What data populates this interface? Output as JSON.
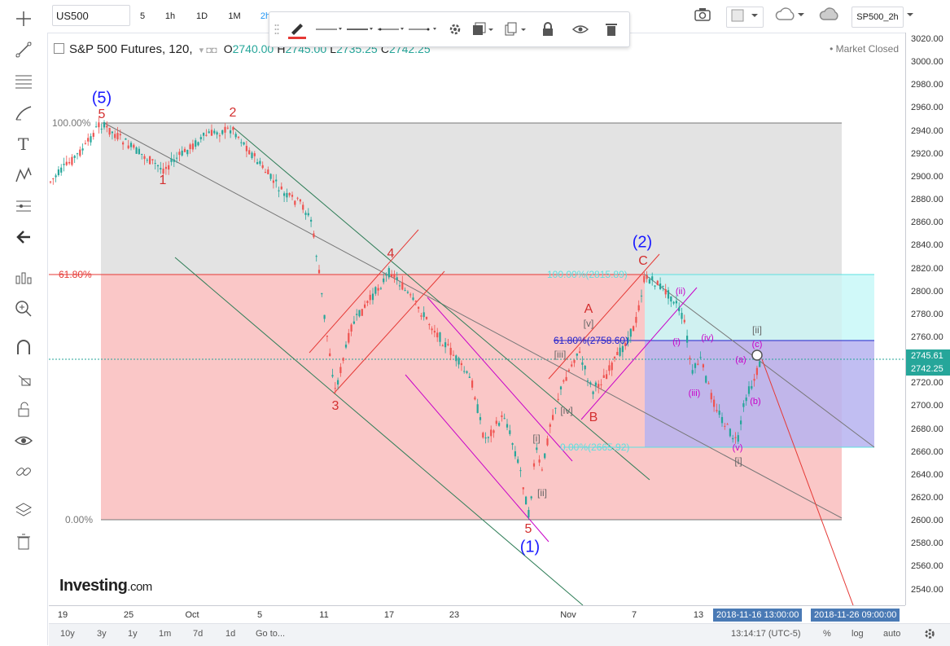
{
  "symbol": "US500",
  "intervals": [
    "5",
    "1h",
    "1D",
    "1M",
    "2h"
  ],
  "layout_name": "SP500_2h",
  "legend": {
    "title": "S&P 500 Futures, 120,",
    "o_label": "O",
    "o_value": "2740.00",
    "h_label": "H",
    "h_value": "2745.00",
    "l_label": "L",
    "l_value": "2735.25",
    "c_label": "C",
    "c_value": "2742.25"
  },
  "market_status": "Market Closed",
  "price_axis": [
    "3020.00",
    "3000.00",
    "2980.00",
    "2960.00",
    "2940.00",
    "2920.00",
    "2900.00",
    "2880.00",
    "2860.00",
    "2840.00",
    "2820.00",
    "2800.00",
    "2780.00",
    "2760.00",
    "2740.00",
    "2720.00",
    "2700.00",
    "2680.00",
    "2660.00",
    "2640.00",
    "2620.00",
    "2600.00",
    "2580.00",
    "2560.00",
    "2540.00"
  ],
  "price_labels": {
    "crosshair": "2745.61",
    "last": "2742.25"
  },
  "time_axis": [
    "19",
    "25",
    "Oct",
    "5",
    "11",
    "17",
    "23",
    "Nov",
    "7",
    "13"
  ],
  "time_labels": [
    "2018-11-16 13:00:00",
    "2018-11-26 09:00:00"
  ],
  "fib_left": {
    "top": "100.00%",
    "mid": "61.80%",
    "bottom": "0.00%"
  },
  "fib_right": {
    "top": "100.00%(2815.89)",
    "mid": "61.80%(2758.60)",
    "bottom": "0.00%(2665.92)"
  },
  "wave_labels": {
    "w5_blue": "(5)",
    "w1_blue": "(1)",
    "w2_blue": "(2)",
    "r5a": "5",
    "r1": "1",
    "r2": "2",
    "r3": "3",
    "r4": "4",
    "r5b": "5",
    "rA": "A",
    "rB": "B",
    "rC": "C",
    "g_i": "[i]",
    "g_ii": "[ii]",
    "g_iii": "[iii]",
    "g_iv": "[iv]",
    "g_v": "[v]",
    "g_i2": "[i]",
    "g_ii2": "[ii]",
    "m_i": "(i)",
    "m_ii": "(ii)",
    "m_iii": "(iii)",
    "m_iv": "(iv)",
    "m_v": "(v)",
    "m_a": "(a)",
    "m_b": "(b)",
    "m_c": "(c)"
  },
  "watermark": {
    "brand": "Investing",
    "suffix": ".com"
  },
  "bottom_bar": {
    "ranges": [
      "10y",
      "3y",
      "1y",
      "1m",
      "7d",
      "1d"
    ],
    "goto": "Go to...",
    "clock": "13:14:17 (UTC-5)",
    "percent": "%",
    "log": "log",
    "auto": "auto"
  },
  "colors": {
    "up": "#26a69a",
    "down": "#ef5350",
    "fib_gray": "#d9d9d9",
    "fib_red": "#f8b4b4",
    "fib_blue": "#b6b3f0",
    "fib_cyan": "#c8f8f8"
  }
}
